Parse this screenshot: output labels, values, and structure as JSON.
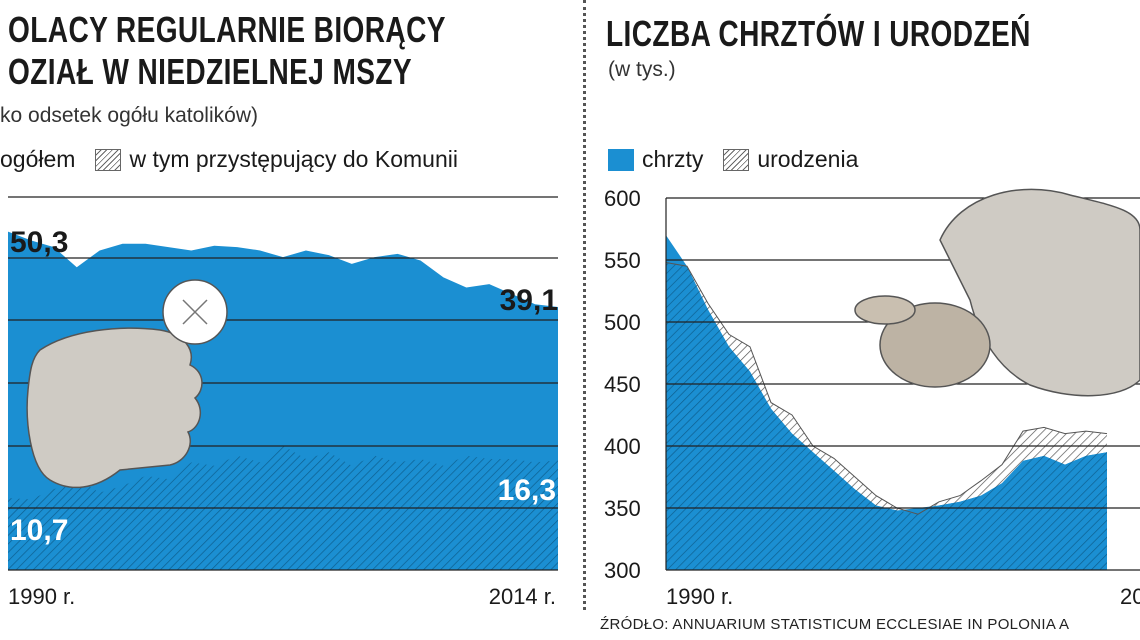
{
  "left": {
    "title_line1": "OLACY REGULARNIE BIORĄCY",
    "title_line2": "OZIAŁ W NIEDZIELNEJ MSZY",
    "subtitle": "ko odsetek ogółu katolików)",
    "legend": [
      {
        "label": "ogółem",
        "swatch": "blue"
      },
      {
        "label": "w tym przystępujący do Komunii",
        "swatch": "hatch"
      }
    ]
  },
  "right": {
    "title": "LICZBA CHRZTÓW I URODZEŃ",
    "subtitle": "(w tys.)",
    "legend": [
      {
        "label": "chrzty",
        "swatch": "blue"
      },
      {
        "label": "urodzenia",
        "swatch": "hatch"
      }
    ]
  },
  "source": "ŹRÓDŁO: ANNUARIUM STATISTICUM ECCLESIAE IN POLONIA A",
  "colors": {
    "blue": "#1b8fd2",
    "hatch_line": "#555555",
    "grid": "#222222",
    "illustration": "#cfcbc4"
  },
  "chart_data": [
    {
      "type": "area",
      "title": "OLACY REGULARNIE BIORĄCY OZIAŁ W NIEDZIELNEJ MSZY",
      "x": [
        1990,
        1991,
        1992,
        1993,
        1994,
        1995,
        1996,
        1997,
        1998,
        1999,
        2000,
        2001,
        2002,
        2003,
        2004,
        2005,
        2006,
        2007,
        2008,
        2009,
        2010,
        2011,
        2012,
        2013,
        2014
      ],
      "x_tick_labels": [
        "1990 r.",
        "2014 r."
      ],
      "ylim": [
        0,
        55
      ],
      "grid": true,
      "series": [
        {
          "name": "ogółem",
          "fill": "blue",
          "values": [
            50.3,
            49.0,
            48.0,
            45.0,
            47.5,
            48.5,
            48.5,
            48.0,
            47.5,
            48.2,
            48.0,
            47.5,
            46.5,
            47.5,
            46.8,
            45.5,
            46.5,
            47.0,
            46.0,
            43.5,
            42.0,
            42.5,
            41.0,
            39.5,
            39.1
          ]
        },
        {
          "name": "w tym przystępujący do Komunii",
          "fill": "hatch",
          "values": [
            10.7,
            10.5,
            12.0,
            13.5,
            11.5,
            12.5,
            14.0,
            13.5,
            16.0,
            15.5,
            17.0,
            16.0,
            18.5,
            16.5,
            17.5,
            15.5,
            17.0,
            16.0,
            16.5,
            15.5,
            17.0,
            16.5,
            16.5,
            16.0,
            16.3
          ]
        }
      ],
      "data_labels": [
        {
          "series": "ogółem",
          "x": 1990,
          "text": "50,3"
        },
        {
          "series": "ogółem",
          "x": 2014,
          "text": "39,1"
        },
        {
          "series": "w tym przystępujący do Komunii",
          "x": 1990,
          "text": "10,7"
        },
        {
          "series": "w tym przystępujący do Komunii",
          "x": 2014,
          "text": "16,3"
        }
      ]
    },
    {
      "type": "area",
      "title": "LICZBA CHRZTÓW I URODZEŃ",
      "subtitle": "(w tys.)",
      "x": [
        1990,
        1991,
        1992,
        1993,
        1994,
        1995,
        1996,
        1997,
        1998,
        1999,
        2000,
        2001,
        2002,
        2003,
        2004,
        2005,
        2006,
        2007,
        2008,
        2009,
        2010,
        2011
      ],
      "x_tick_labels": [
        "1990 r."
      ],
      "ylim": [
        300,
        600
      ],
      "y_ticks": [
        300,
        350,
        400,
        450,
        500,
        550,
        600
      ],
      "grid": true,
      "series": [
        {
          "name": "chrzty",
          "fill": "blue",
          "values": [
            570,
            545,
            510,
            480,
            460,
            430,
            410,
            395,
            380,
            365,
            352,
            348,
            350,
            352,
            355,
            360,
            370,
            388,
            392,
            385,
            392,
            395
          ]
        },
        {
          "name": "urodzenia",
          "fill": "hatch",
          "values": [
            548,
            545,
            515,
            490,
            480,
            435,
            425,
            400,
            390,
            375,
            360,
            350,
            345,
            355,
            360,
            372,
            385,
            412,
            415,
            410,
            412,
            410
          ]
        }
      ]
    }
  ]
}
